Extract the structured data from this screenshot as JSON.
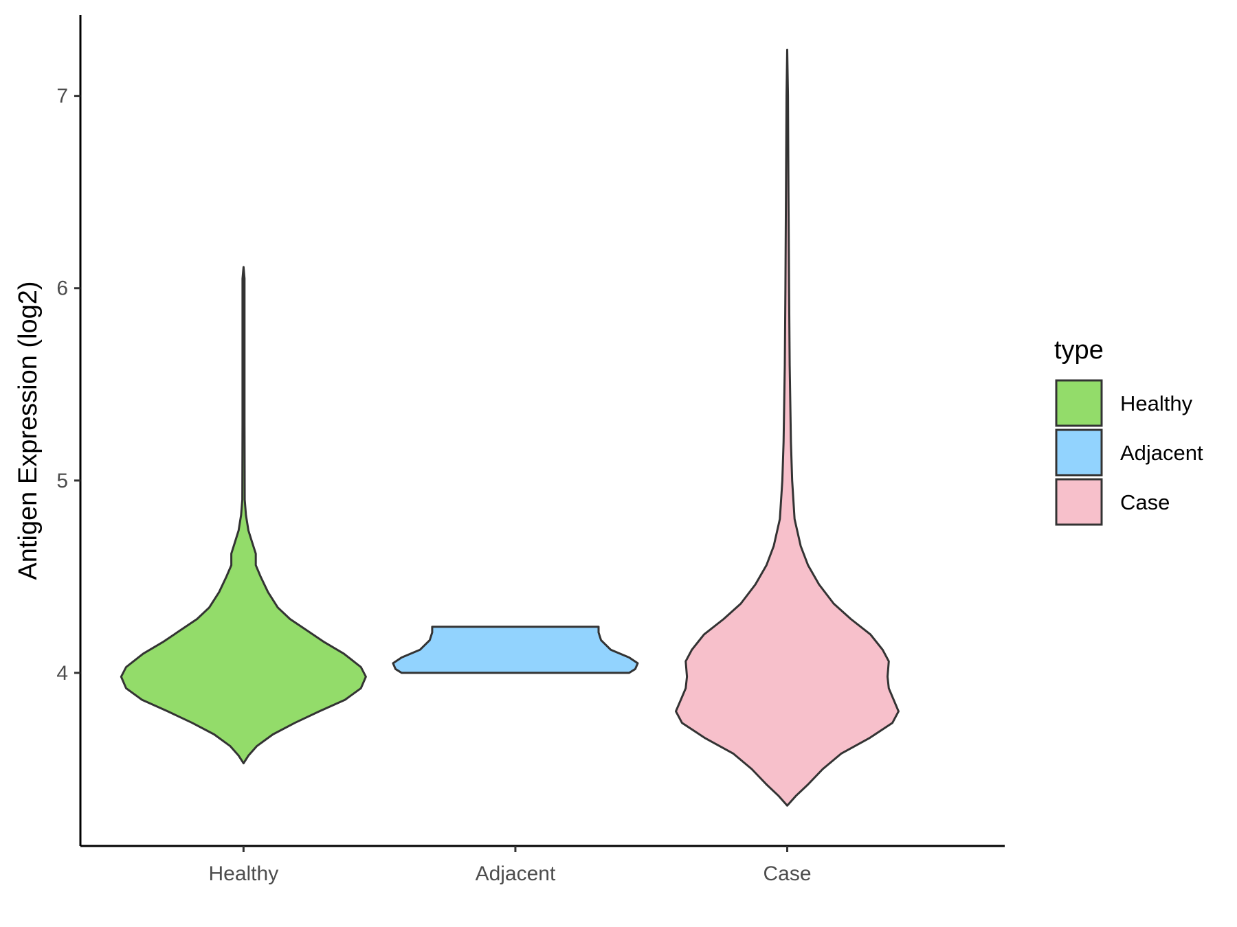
{
  "chart_data": {
    "type": "violin",
    "ylabel": "Antigen Expression (log2)",
    "xlabel": "",
    "categories": [
      "Healthy",
      "Adjacent",
      "Case"
    ],
    "ylim": [
      3.1,
      7.42
    ],
    "yticks": [
      4,
      5,
      6,
      7
    ],
    "grid": false,
    "legend": {
      "title": "type",
      "position": "right",
      "entries": [
        "Healthy",
        "Adjacent",
        "Case"
      ]
    },
    "series": [
      {
        "name": "Healthy",
        "color": "#93dc6a",
        "ymin": 3.53,
        "ymax": 6.11,
        "density": [
          [
            3.53,
            0.0
          ],
          [
            3.57,
            0.04
          ],
          [
            3.62,
            0.11
          ],
          [
            3.68,
            0.24
          ],
          [
            3.74,
            0.42
          ],
          [
            3.8,
            0.62
          ],
          [
            3.86,
            0.83
          ],
          [
            3.92,
            0.96
          ],
          [
            3.98,
            1.0
          ],
          [
            4.03,
            0.96
          ],
          [
            4.1,
            0.82
          ],
          [
            4.16,
            0.66
          ],
          [
            4.22,
            0.52
          ],
          [
            4.28,
            0.38
          ],
          [
            4.34,
            0.28
          ],
          [
            4.42,
            0.2
          ],
          [
            4.5,
            0.14
          ],
          [
            4.56,
            0.1
          ],
          [
            4.62,
            0.1
          ],
          [
            4.68,
            0.07
          ],
          [
            4.74,
            0.04
          ],
          [
            4.82,
            0.02
          ],
          [
            4.9,
            0.01
          ],
          [
            5.3,
            0.008
          ],
          [
            5.8,
            0.008
          ],
          [
            6.05,
            0.008
          ],
          [
            6.11,
            0.0
          ]
        ]
      },
      {
        "name": "Adjacent",
        "color": "#92d3fe",
        "ymin": 4.0,
        "ymax": 4.24,
        "density": [
          [
            4.0,
            0.93
          ],
          [
            4.02,
            0.98
          ],
          [
            4.05,
            1.0
          ],
          [
            4.08,
            0.93
          ],
          [
            4.12,
            0.78
          ],
          [
            4.17,
            0.7
          ],
          [
            4.21,
            0.68
          ],
          [
            4.24,
            0.68
          ]
        ]
      },
      {
        "name": "Case",
        "color": "#f7c0cb",
        "ymin": 3.31,
        "ymax": 7.24,
        "density": [
          [
            3.31,
            0.0
          ],
          [
            3.36,
            0.07
          ],
          [
            3.42,
            0.17
          ],
          [
            3.5,
            0.29
          ],
          [
            3.58,
            0.44
          ],
          [
            3.66,
            0.67
          ],
          [
            3.74,
            0.86
          ],
          [
            3.8,
            0.91
          ],
          [
            3.86,
            0.87
          ],
          [
            3.92,
            0.83
          ],
          [
            3.98,
            0.82
          ],
          [
            4.06,
            0.83
          ],
          [
            4.12,
            0.78
          ],
          [
            4.2,
            0.68
          ],
          [
            4.28,
            0.52
          ],
          [
            4.36,
            0.38
          ],
          [
            4.46,
            0.26
          ],
          [
            4.56,
            0.17
          ],
          [
            4.66,
            0.11
          ],
          [
            4.8,
            0.06
          ],
          [
            5.0,
            0.04
          ],
          [
            5.2,
            0.03
          ],
          [
            5.6,
            0.02
          ],
          [
            6.0,
            0.015
          ],
          [
            6.5,
            0.01
          ],
          [
            7.0,
            0.006
          ],
          [
            7.24,
            0.0
          ]
        ]
      }
    ]
  }
}
